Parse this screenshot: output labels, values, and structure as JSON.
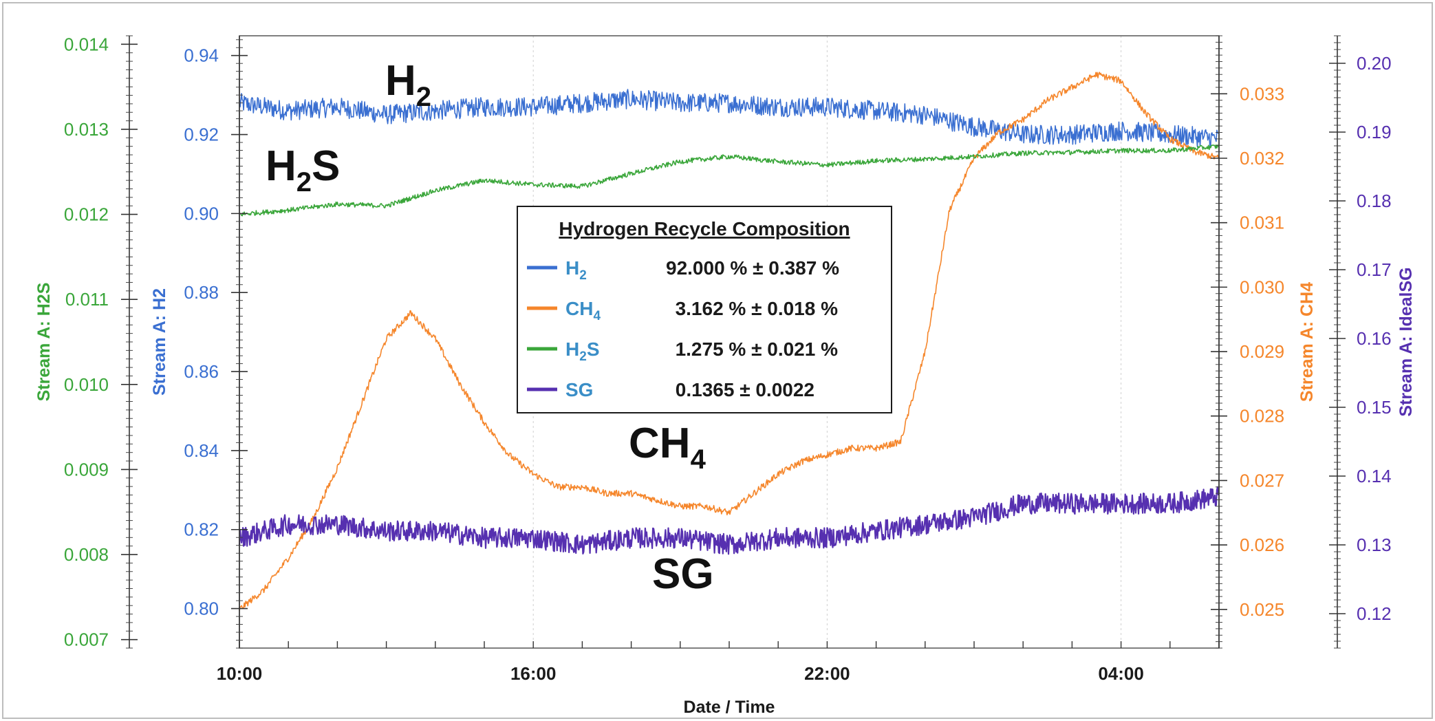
{
  "chart_data": {
    "type": "line",
    "title": "",
    "xlabel": "Date / Time",
    "x_tick_labels": [
      "10:00",
      "16:00",
      "22:00",
      "04:00"
    ],
    "x_tick_hours": [
      0,
      6,
      12,
      18
    ],
    "x_range_hours": [
      0,
      20
    ],
    "grid": true,
    "colors": {
      "h2": "#3a6fd1",
      "ch4": "#f5862b",
      "h2s": "#3aa63a",
      "sg": "#5630b0",
      "legend_name": "#3a8ec7",
      "grid": "#cfcfcf"
    },
    "axes": {
      "h2s": {
        "label": "Stream A: H2S",
        "range": [
          0.0069,
          0.0141
        ],
        "ticks": [
          "0.007",
          "0.008",
          "0.009",
          "0.010",
          "0.011",
          "0.012",
          "0.013",
          "0.014"
        ]
      },
      "h2": {
        "label": "Stream A: H2",
        "range": [
          0.79,
          0.945
        ],
        "ticks": [
          "0.80",
          "0.82",
          "0.84",
          "0.86",
          "0.88",
          "0.90",
          "0.92",
          "0.94"
        ]
      },
      "ch4": {
        "label": "Stream A: CH4",
        "range": [
          0.0244,
          0.0339
        ],
        "ticks": [
          "0.025",
          "0.026",
          "0.027",
          "0.028",
          "0.029",
          "0.030",
          "0.031",
          "0.032",
          "0.033"
        ]
      },
      "sg": {
        "label": "Stream A: IdealSG",
        "range": [
          0.115,
          0.204
        ],
        "ticks": [
          "0.12",
          "0.13",
          "0.14",
          "0.15",
          "0.16",
          "0.17",
          "0.18",
          "0.19",
          "0.20"
        ]
      }
    },
    "series": [
      {
        "id": "h2",
        "axis": "h2",
        "x_hours": [
          0,
          1,
          2,
          3,
          4,
          5,
          6,
          7,
          8,
          9,
          10,
          11,
          12,
          13,
          14,
          15,
          16,
          17,
          18,
          19,
          20
        ],
        "values": [
          0.928,
          0.926,
          0.927,
          0.925,
          0.926,
          0.927,
          0.927,
          0.928,
          0.929,
          0.928,
          0.928,
          0.927,
          0.927,
          0.926,
          0.925,
          0.922,
          0.92,
          0.92,
          0.921,
          0.92,
          0.919
        ]
      },
      {
        "id": "ch4",
        "axis": "ch4",
        "x_hours": [
          0,
          0.5,
          1,
          1.5,
          2,
          2.5,
          3,
          3.5,
          4,
          4.5,
          5,
          5.5,
          6,
          6.5,
          7,
          7.5,
          8,
          8.5,
          9,
          9.5,
          10,
          10.5,
          11,
          11.5,
          12,
          12.5,
          13,
          13.5,
          14,
          14.5,
          15,
          15.5,
          16,
          16.5,
          17,
          17.5,
          18,
          18.5,
          19,
          19.5,
          20
        ],
        "values": [
          0.025,
          0.0253,
          0.0258,
          0.0264,
          0.0272,
          0.0282,
          0.0292,
          0.0296,
          0.0292,
          0.0285,
          0.0279,
          0.0274,
          0.0271,
          0.0269,
          0.0269,
          0.0268,
          0.0268,
          0.0267,
          0.0266,
          0.0266,
          0.0265,
          0.0268,
          0.0271,
          0.0273,
          0.0274,
          0.0275,
          0.0275,
          0.0276,
          0.029,
          0.0312,
          0.032,
          0.0324,
          0.0326,
          0.0329,
          0.0331,
          0.0333,
          0.0332,
          0.0327,
          0.0323,
          0.0321,
          0.032
        ]
      },
      {
        "id": "h2s",
        "axis": "h2s",
        "x_hours": [
          0,
          1,
          2,
          3,
          4,
          5,
          6,
          7,
          8,
          9,
          10,
          11,
          12,
          13,
          14,
          15,
          16,
          17,
          18,
          19,
          20
        ],
        "values": [
          0.012,
          0.01205,
          0.01212,
          0.0121,
          0.01228,
          0.0124,
          0.01235,
          0.01233,
          0.01248,
          0.01262,
          0.01268,
          0.01262,
          0.01258,
          0.01263,
          0.01265,
          0.01268,
          0.01272,
          0.01273,
          0.01275,
          0.01275,
          0.0128
        ]
      },
      {
        "id": "sg",
        "axis": "sg",
        "x_hours": [
          0,
          1,
          2,
          3,
          4,
          5,
          6,
          7,
          8,
          9,
          10,
          11,
          12,
          13,
          14,
          15,
          16,
          17,
          18,
          19,
          20
        ],
        "values": [
          0.131,
          0.133,
          0.133,
          0.132,
          0.132,
          0.131,
          0.131,
          0.13,
          0.131,
          0.131,
          0.13,
          0.131,
          0.131,
          0.132,
          0.133,
          0.134,
          0.136,
          0.136,
          0.136,
          0.136,
          0.137
        ]
      }
    ],
    "annotations": [
      {
        "id": "h2",
        "text": "H",
        "sub": "2",
        "tail": ""
      },
      {
        "id": "h2s",
        "text": "H",
        "sub": "2",
        "tail": "S"
      },
      {
        "id": "ch4",
        "text": "CH",
        "sub": "4",
        "tail": ""
      },
      {
        "id": "sg",
        "text": "SG",
        "sub": "",
        "tail": ""
      }
    ],
    "legend": {
      "title": "Hydrogen Recycle Composition",
      "placement": "center",
      "entries": [
        {
          "id": "h2",
          "name": "H",
          "sub": "2",
          "tail": "",
          "value": "92.000 % ± 0.387 %"
        },
        {
          "id": "ch4",
          "name": "CH",
          "sub": "4",
          "tail": "",
          "value": "3.162 % ± 0.018 %"
        },
        {
          "id": "h2s",
          "name": "H",
          "sub": "2",
          "tail": "S",
          "value": "1.275 % ± 0.021 %"
        },
        {
          "id": "sg",
          "name": "SG",
          "sub": "",
          "tail": "",
          "value": "0.1365  ± 0.0022"
        }
      ]
    }
  }
}
